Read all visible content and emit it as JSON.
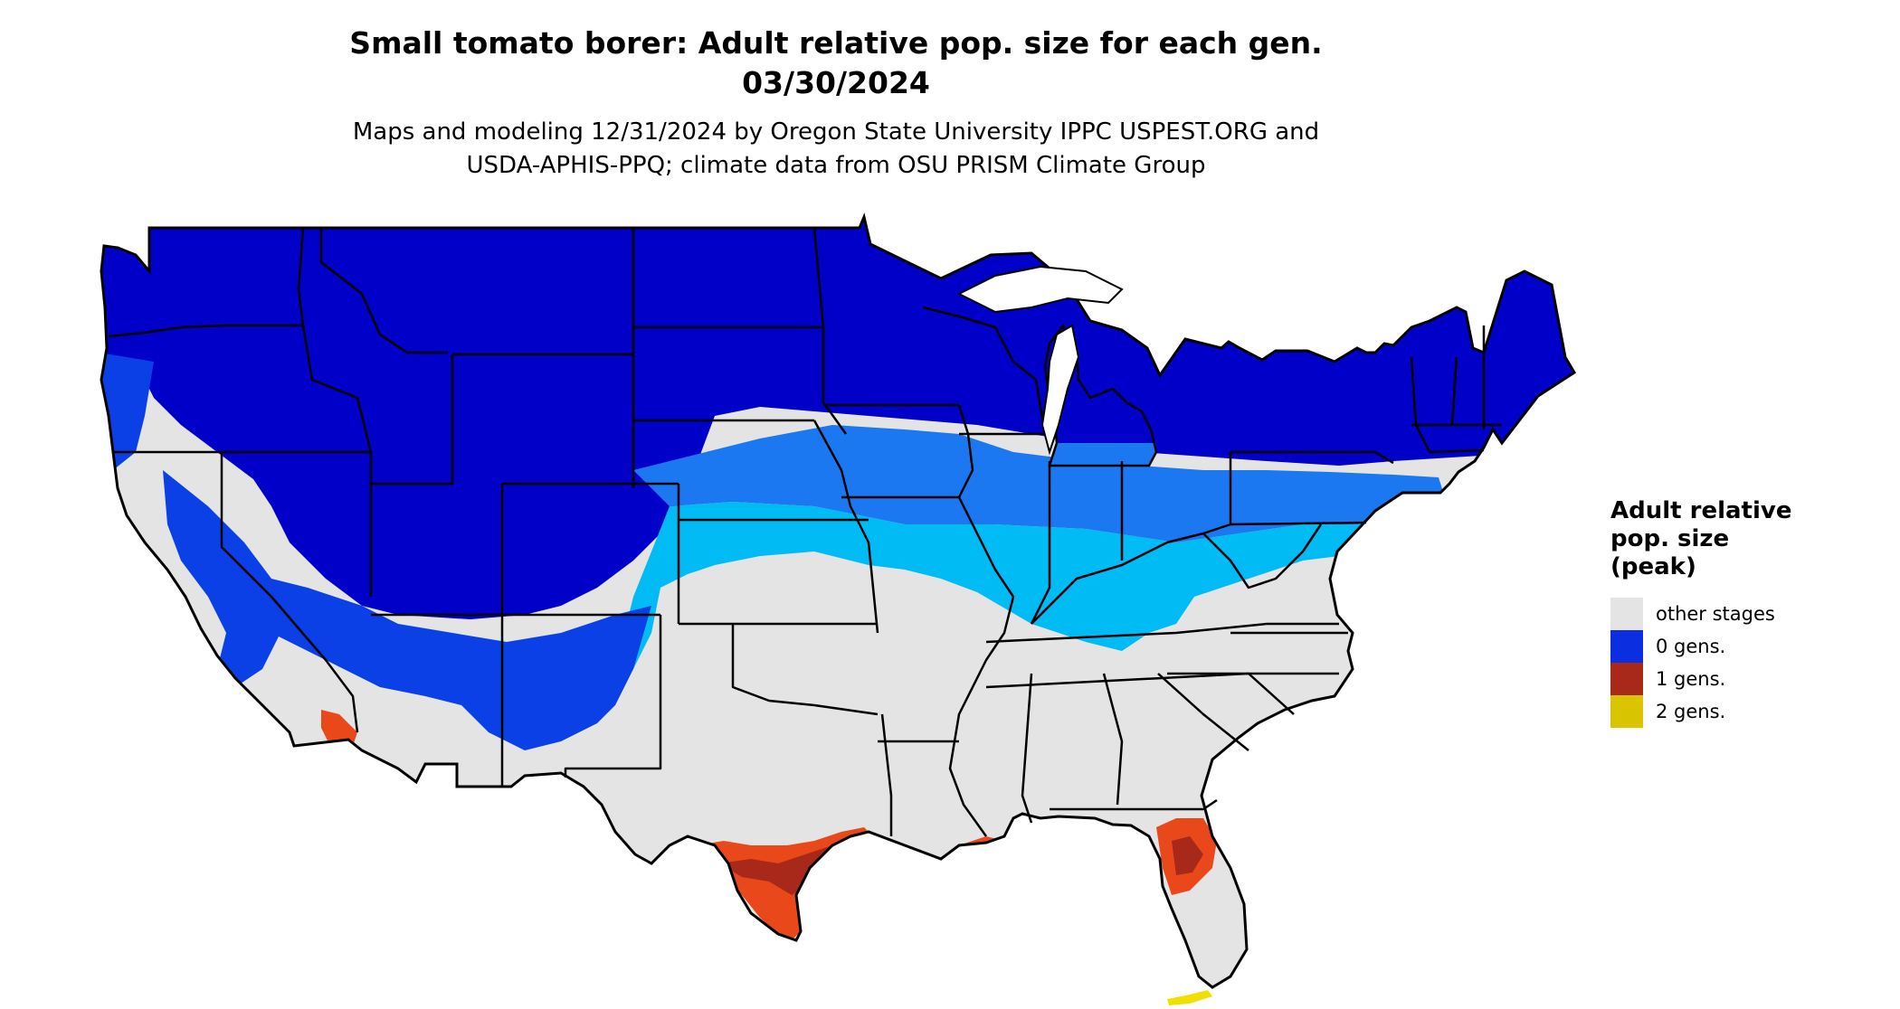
{
  "header": {
    "title_line1": "Small tomato borer: Adult relative pop. size for each gen.",
    "title_line2": "03/30/2024",
    "subtitle_line1": "Maps and modeling 12/31/2024 by Oregon State University IPPC USPEST.ORG and",
    "subtitle_line2": "USDA-APHIS-PPQ; climate data from OSU PRISM Climate Group"
  },
  "legend": {
    "title_line1": "Adult relative",
    "title_line2": "pop. size",
    "title_line3": "(peak)",
    "items": [
      {
        "label": "other stages",
        "color": "#e4e4e4"
      },
      {
        "label": "0 gens.",
        "color": "#0a2ee0"
      },
      {
        "label": "1 gens.",
        "color": "#a8281a"
      },
      {
        "label": "2 gens.",
        "color": "#d8c400"
      }
    ]
  },
  "map_colors": {
    "gray": "#e4e4e4",
    "dark_blue": "#0000c8",
    "blue": "#0a40e6",
    "mid_blue": "#1c78f0",
    "light_blue": "#00bbf4",
    "dark_red": "#a8281a",
    "orange_red": "#e8481a",
    "yellow": "#f0e000"
  }
}
